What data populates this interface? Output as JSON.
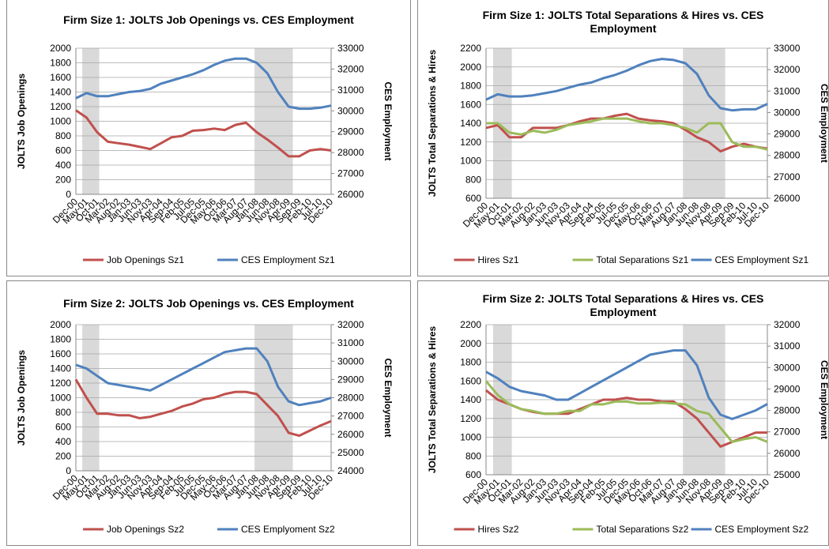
{
  "chart_data": [
    {
      "type": "line",
      "title": "Firm Size 1:  JOLTS Job Openings vs. CES Employment",
      "y_label": "JOLTS Job Openings",
      "y2_label": "CES Employment",
      "categories": [
        "Dec-00",
        "May-01",
        "Oct-01",
        "Mar-02",
        "Aug-02",
        "Jan-03",
        "Jun-03",
        "Nov-03",
        "Apr-04",
        "Sep-04",
        "Feb-05",
        "Jul-05",
        "Dec-05",
        "May-06",
        "Oct-06",
        "Mar-07",
        "Aug-07",
        "Jan-08",
        "Jun-08",
        "Nov-08",
        "Apr-09",
        "Sep-09",
        "Feb-10",
        "Jul-10",
        "Dec-10"
      ],
      "series": [
        {
          "name": "Job Openings Sz1",
          "color": "#c0504d",
          "values": [
            1150,
            1050,
            850,
            720,
            700,
            680,
            650,
            620,
            700,
            780,
            800,
            870,
            880,
            900,
            880,
            950,
            980,
            850,
            750,
            640,
            520,
            520,
            600,
            620,
            600
          ]
        },
        {
          "name": "CES Employment  Sz1",
          "color": "#4f81bd",
          "axis": "y2",
          "values": [
            30600,
            30850,
            30700,
            30700,
            30800,
            30900,
            30950,
            31050,
            31300,
            31450,
            31600,
            31750,
            31950,
            32200,
            32400,
            32500,
            32500,
            32300,
            31800,
            30900,
            30200,
            30100,
            30100,
            30150,
            30250
          ]
        }
      ],
      "ylim": [
        0,
        2000
      ],
      "yticks": [
        0,
        200,
        400,
        600,
        800,
        1000,
        1200,
        1400,
        1600,
        1800,
        2000
      ],
      "y2lim": [
        26000,
        33000
      ],
      "y2ticks": [
        26000,
        27000,
        28000,
        29000,
        30000,
        31000,
        32000,
        33000
      ],
      "grid": true
    },
    {
      "type": "line",
      "title": "Firm Size 1: JOLTS Total Separations & Hires vs. CES Employment",
      "y_label": "JOLTS Total Separations & Hires",
      "y2_label": "CES Employment",
      "categories": [
        "Dec-00",
        "May-01",
        "Oct-01",
        "Mar-02",
        "Aug-02",
        "Jan-03",
        "Jun-03",
        "Nov-03",
        "Apr-04",
        "Sep-04",
        "Feb-05",
        "Jul-05",
        "Dec-05",
        "May-06",
        "Oct-06",
        "Mar-07",
        "Aug-07",
        "Jan-08",
        "Jun-08",
        "Nov-08",
        "Apr-09",
        "Sep-09",
        "Feb-10",
        "Jul-10",
        "Dec-10"
      ],
      "series": [
        {
          "name": "Hires Sz1",
          "color": "#c0504d",
          "values": [
            1350,
            1380,
            1250,
            1250,
            1350,
            1350,
            1350,
            1380,
            1420,
            1450,
            1450,
            1480,
            1500,
            1450,
            1430,
            1420,
            1400,
            1330,
            1250,
            1200,
            1100,
            1150,
            1180,
            1150,
            1130
          ]
        },
        {
          "name": "Total Separations Sz1",
          "color": "#9bbb59",
          "values": [
            1400,
            1400,
            1300,
            1280,
            1320,
            1300,
            1330,
            1380,
            1400,
            1420,
            1450,
            1450,
            1450,
            1420,
            1400,
            1400,
            1380,
            1350,
            1300,
            1400,
            1400,
            1200,
            1150,
            1150,
            1120
          ]
        },
        {
          "name": "CES Employment Sz1",
          "color": "#4f81bd",
          "axis": "y2",
          "values": [
            30600,
            30850,
            30750,
            30750,
            30800,
            30900,
            31000,
            31150,
            31300,
            31400,
            31600,
            31750,
            31950,
            32200,
            32400,
            32500,
            32450,
            32300,
            31800,
            30800,
            30200,
            30100,
            30150,
            30150,
            30400
          ]
        }
      ],
      "ylim": [
        600,
        2200
      ],
      "yticks": [
        600,
        800,
        1000,
        1200,
        1400,
        1600,
        1800,
        2000,
        2200
      ],
      "y2lim": [
        26000,
        33000
      ],
      "y2ticks": [
        26000,
        27000,
        28000,
        29000,
        30000,
        31000,
        32000,
        33000
      ],
      "grid": true
    },
    {
      "type": "line",
      "title": "Firm Size 2:  JOLTS Job Openings vs. CES Employment",
      "y_label": "JOLTS Job Openings",
      "y2_label": "CES Employment",
      "categories": [
        "Dec-00",
        "May-01",
        "Oct-01",
        "Mar-02",
        "Aug-02",
        "Jan-03",
        "Jun-03",
        "Nov-03",
        "Apr-04",
        "Sep-04",
        "Feb-05",
        "Jul-05",
        "Dec-05",
        "May-06",
        "Oct-06",
        "Mar-07",
        "Aug-07",
        "Jan-08",
        "Jun-08",
        "Nov-08",
        "Apr-09",
        "Sep-09",
        "Feb-10",
        "Jul-10",
        "Dec-10"
      ],
      "series": [
        {
          "name": "Job Openings Sz2",
          "color": "#c0504d",
          "values": [
            1250,
            1000,
            780,
            780,
            760,
            760,
            720,
            740,
            780,
            820,
            880,
            920,
            980,
            1000,
            1050,
            1080,
            1080,
            1050,
            900,
            750,
            520,
            480,
            550,
            620,
            680
          ]
        },
        {
          "name": "CES Emplyoment Sz2",
          "color": "#4f81bd",
          "axis": "y2",
          "values": [
            29800,
            29600,
            29200,
            28800,
            28700,
            28600,
            28500,
            28400,
            28700,
            29000,
            29300,
            29600,
            29900,
            30200,
            30500,
            30600,
            30700,
            30700,
            30000,
            28600,
            27800,
            27600,
            27700,
            27800,
            28000
          ]
        }
      ],
      "ylim": [
        0,
        2000
      ],
      "yticks": [
        0,
        200,
        400,
        600,
        800,
        1000,
        1200,
        1400,
        1600,
        1800,
        2000
      ],
      "y2lim": [
        24000,
        32000
      ],
      "y2ticks": [
        24000,
        25000,
        26000,
        27000,
        28000,
        29000,
        30000,
        31000,
        32000
      ],
      "grid": true
    },
    {
      "type": "line",
      "title": "Firm Size 2: JOLTS Total Separations & Hires vs. CES Employment",
      "y_label": "JOLTS Total Separations & Hires",
      "y2_label": "CES Employment",
      "categories": [
        "Dec-00",
        "May-01",
        "Oct-01",
        "Mar-02",
        "Aug-02",
        "Jan-03",
        "Jun-03",
        "Nov-03",
        "Apr-04",
        "Sep-04",
        "Feb-05",
        "Jul-05",
        "Dec-05",
        "May-06",
        "Oct-06",
        "Mar-07",
        "Aug-07",
        "Jan-08",
        "Jun-08",
        "Nov-08",
        "Apr-09",
        "Sep-09",
        "Feb-10",
        "Jul-10",
        "Dec-10"
      ],
      "series": [
        {
          "name": "Hires Sz2",
          "color": "#c0504d",
          "values": [
            1500,
            1400,
            1350,
            1300,
            1270,
            1250,
            1250,
            1250,
            1300,
            1350,
            1400,
            1400,
            1420,
            1400,
            1400,
            1380,
            1380,
            1300,
            1200,
            1050,
            900,
            950,
            1000,
            1050,
            1050
          ]
        },
        {
          "name": "Total Separations Sz2",
          "color": "#9bbb59",
          "values": [
            1600,
            1450,
            1350,
            1300,
            1280,
            1250,
            1250,
            1280,
            1280,
            1350,
            1350,
            1380,
            1380,
            1360,
            1360,
            1370,
            1360,
            1350,
            1280,
            1250,
            1100,
            950,
            980,
            1000,
            950
          ]
        },
        {
          "name": "CES Employment Sz2",
          "color": "#4f81bd",
          "axis": "y2",
          "values": [
            29800,
            29500,
            29100,
            28900,
            28800,
            28700,
            28500,
            28500,
            28800,
            29100,
            29400,
            29700,
            30000,
            30300,
            30600,
            30700,
            30800,
            30800,
            30100,
            28600,
            27800,
            27600,
            27800,
            28000,
            28300
          ]
        }
      ],
      "ylim": [
        600,
        2200
      ],
      "yticks": [
        600,
        800,
        1000,
        1200,
        1400,
        1600,
        1800,
        2000,
        2200
      ],
      "y2lim": [
        25000,
        32000
      ],
      "y2ticks": [
        25000,
        26000,
        27000,
        28000,
        29000,
        30000,
        31000,
        32000
      ],
      "grid": true
    }
  ]
}
